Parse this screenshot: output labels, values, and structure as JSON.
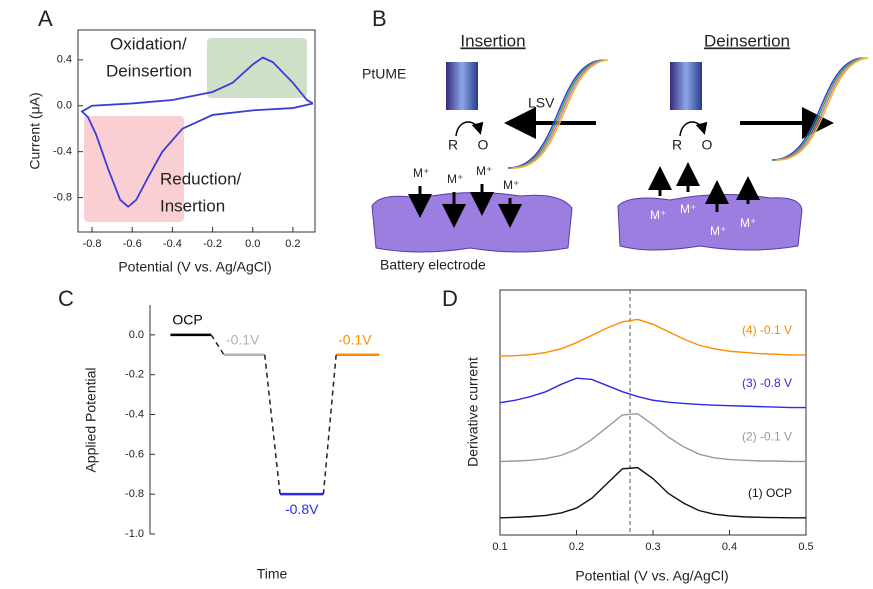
{
  "chart_data": [
    {
      "type": "line",
      "panel": "A",
      "xlabel": "Potential (V vs. Ag/AgCl)",
      "ylabel": "Current (μA)",
      "annotations": [
        "Oxidation/",
        "Deinsertion",
        "Reduction/",
        "Insertion"
      ],
      "xlim": [
        -0.87,
        0.31
      ],
      "ylim": [
        -1.1,
        0.66
      ],
      "xticks": [
        -0.8,
        -0.6,
        -0.4,
        -0.2,
        {
          "value": 0,
          "label": "0.0"
        },
        0.2
      ],
      "yticks": [
        0.4,
        {
          "value": 0,
          "label": "0.0"
        },
        -0.4,
        -0.8
      ],
      "color": "#3b3bd6",
      "x": [
        0.3,
        0.2,
        0.0,
        -0.2,
        -0.35,
        -0.45,
        -0.52,
        -0.58,
        -0.62,
        -0.66,
        -0.72,
        -0.78,
        -0.82,
        -0.85,
        -0.8,
        -0.6,
        -0.4,
        -0.2,
        -0.1,
        0.0,
        0.05,
        0.1,
        0.2,
        0.27,
        0.3
      ],
      "values": [
        0.02,
        -0.02,
        -0.04,
        -0.08,
        -0.2,
        -0.4,
        -0.62,
        -0.82,
        -0.88,
        -0.82,
        -0.55,
        -0.25,
        -0.1,
        -0.05,
        0.0,
        0.02,
        0.05,
        0.12,
        0.2,
        0.36,
        0.42,
        0.38,
        0.2,
        0.05,
        0.02
      ]
    },
    {
      "type": "step",
      "panel": "C",
      "xlabel": "Time",
      "ylabel": "Applied Potential",
      "xlim": [
        0,
        10
      ],
      "ylim": [
        -1.0,
        0.15
      ],
      "yticks": [
        {
          "value": 0,
          "label": "0.0"
        },
        -0.2,
        -0.4,
        -0.6,
        -0.8,
        {
          "value": -1,
          "label": "-1.0"
        }
      ],
      "series": [
        {
          "name": "OCP",
          "color": "#000000",
          "x": [
            0.8,
            2.4
          ],
          "values": [
            0,
            0
          ]
        },
        {
          "name": "-0.1V",
          "color": "#b0b0b0",
          "x": [
            2.9,
            4.5
          ],
          "values": [
            -0.1,
            -0.1
          ]
        },
        {
          "name": "-0.8V",
          "color": "#2a2ae8",
          "x": [
            5.1,
            6.8
          ],
          "values": [
            -0.8,
            -0.8
          ]
        },
        {
          "name": "-0.1V",
          "color": "#ff8c00",
          "x": [
            7.3,
            9.0
          ],
          "values": [
            -0.1,
            -0.1
          ]
        }
      ]
    },
    {
      "type": "line",
      "panel": "D",
      "xlabel": "Potential (V vs. Ag/AgCl)",
      "ylabel": "Derivative current",
      "xlim": [
        0.1,
        0.5
      ],
      "ylim": [
        0,
        10
      ],
      "xticks": [
        0.1,
        0.2,
        0.3,
        0.4,
        0.5
      ],
      "marker_x": 0.27,
      "x": [
        0.1,
        0.12,
        0.14,
        0.16,
        0.18,
        0.2,
        0.22,
        0.24,
        0.26,
        0.28,
        0.3,
        0.32,
        0.34,
        0.36,
        0.38,
        0.4,
        0.42,
        0.44,
        0.46,
        0.48,
        0.5
      ],
      "series": [
        {
          "name": "(1) OCP",
          "color": "#111111",
          "values": [
            0.7,
            0.72,
            0.75,
            0.8,
            0.9,
            1.1,
            1.5,
            2.1,
            2.7,
            2.75,
            2.3,
            1.7,
            1.3,
            1.0,
            0.85,
            0.78,
            0.74,
            0.72,
            0.71,
            0.7,
            0.7
          ]
        },
        {
          "name": "(2) -0.1 V",
          "color": "#9a9a9a",
          "values": [
            3.0,
            3.02,
            3.05,
            3.12,
            3.25,
            3.5,
            3.9,
            4.4,
            4.9,
            4.95,
            4.5,
            4.0,
            3.6,
            3.3,
            3.15,
            3.08,
            3.05,
            3.02,
            3.02,
            3.0,
            3.0
          ]
        },
        {
          "name": "(3) -0.8 V",
          "color": "#2a2ae8",
          "values": [
            5.4,
            5.5,
            5.65,
            5.85,
            6.15,
            6.4,
            6.35,
            6.1,
            5.85,
            5.65,
            5.5,
            5.42,
            5.37,
            5.33,
            5.3,
            5.28,
            5.26,
            5.24,
            5.22,
            5.2,
            5.2
          ]
        },
        {
          "name": "(4) -0.1 V",
          "color": "#ff8c00",
          "values": [
            7.3,
            7.32,
            7.36,
            7.45,
            7.6,
            7.85,
            8.15,
            8.45,
            8.7,
            8.8,
            8.6,
            8.3,
            8.0,
            7.75,
            7.6,
            7.5,
            7.45,
            7.4,
            7.38,
            7.35,
            7.35
          ]
        }
      ]
    }
  ],
  "panel_b": {
    "panel": "B",
    "titles": [
      "Insertion",
      "Deinsertion"
    ],
    "electrode": "PtUME",
    "lsv": "LSV",
    "redox": [
      "R",
      "O",
      "R",
      "O"
    ],
    "ions": [
      "M⁺",
      "M⁺",
      "M⁺",
      "M⁺",
      "M⁺",
      "M⁺",
      "M⁺",
      "M⁺"
    ],
    "substrate": "Battery electrode"
  }
}
